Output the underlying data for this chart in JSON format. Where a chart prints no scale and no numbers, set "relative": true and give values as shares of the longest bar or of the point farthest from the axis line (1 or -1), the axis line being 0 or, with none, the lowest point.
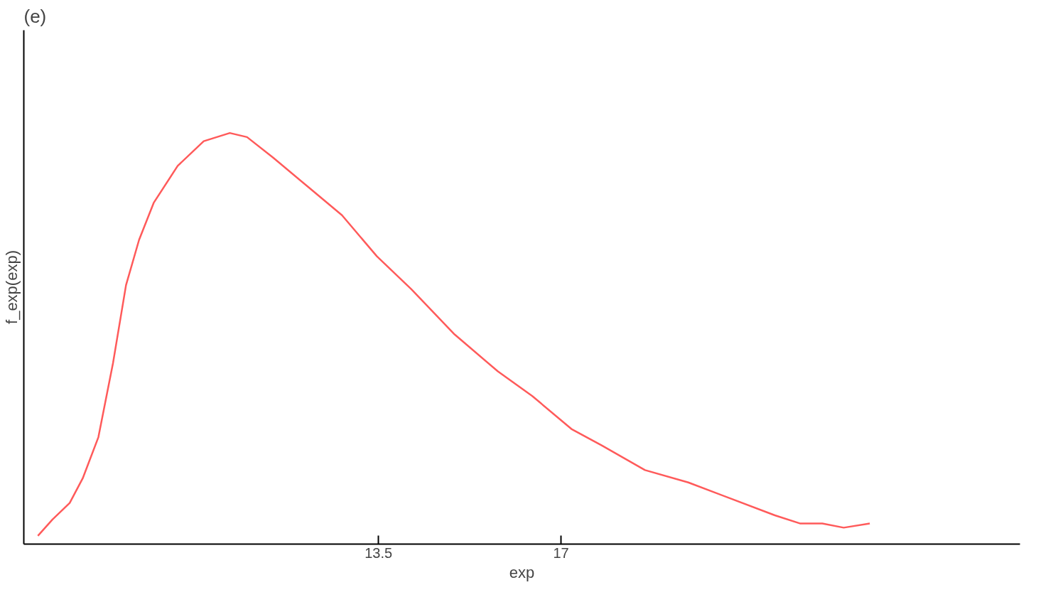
{
  "chart_data": {
    "type": "line",
    "title": "(e)",
    "xlabel": "exp",
    "ylabel": "f_exp(exp)",
    "relative": true,
    "xlim": [
      6.7,
      25.8
    ],
    "xticks": [
      13.5,
      17
    ],
    "grid": false,
    "marker": "none",
    "line_style": "solid",
    "series": [
      {
        "color": "#ff5a5a",
        "x": [
          6.97,
          7.25,
          7.58,
          7.83,
          8.13,
          8.41,
          8.66,
          8.91,
          9.19,
          9.65,
          10.15,
          10.65,
          10.98,
          11.48,
          12.14,
          12.8,
          13.47,
          14.13,
          14.96,
          15.79,
          16.45,
          17.2,
          17.78,
          18.61,
          19.44,
          20.27,
          21.1,
          21.59,
          22.01,
          22.42,
          22.92
        ],
        "values": [
          0.02,
          0.06,
          0.1,
          0.16,
          0.26,
          0.44,
          0.63,
          0.74,
          0.83,
          0.92,
          0.98,
          1.0,
          0.99,
          0.94,
          0.87,
          0.8,
          0.7,
          0.62,
          0.51,
          0.42,
          0.36,
          0.28,
          0.24,
          0.18,
          0.15,
          0.11,
          0.07,
          0.05,
          0.05,
          0.04,
          0.05
        ]
      }
    ]
  }
}
